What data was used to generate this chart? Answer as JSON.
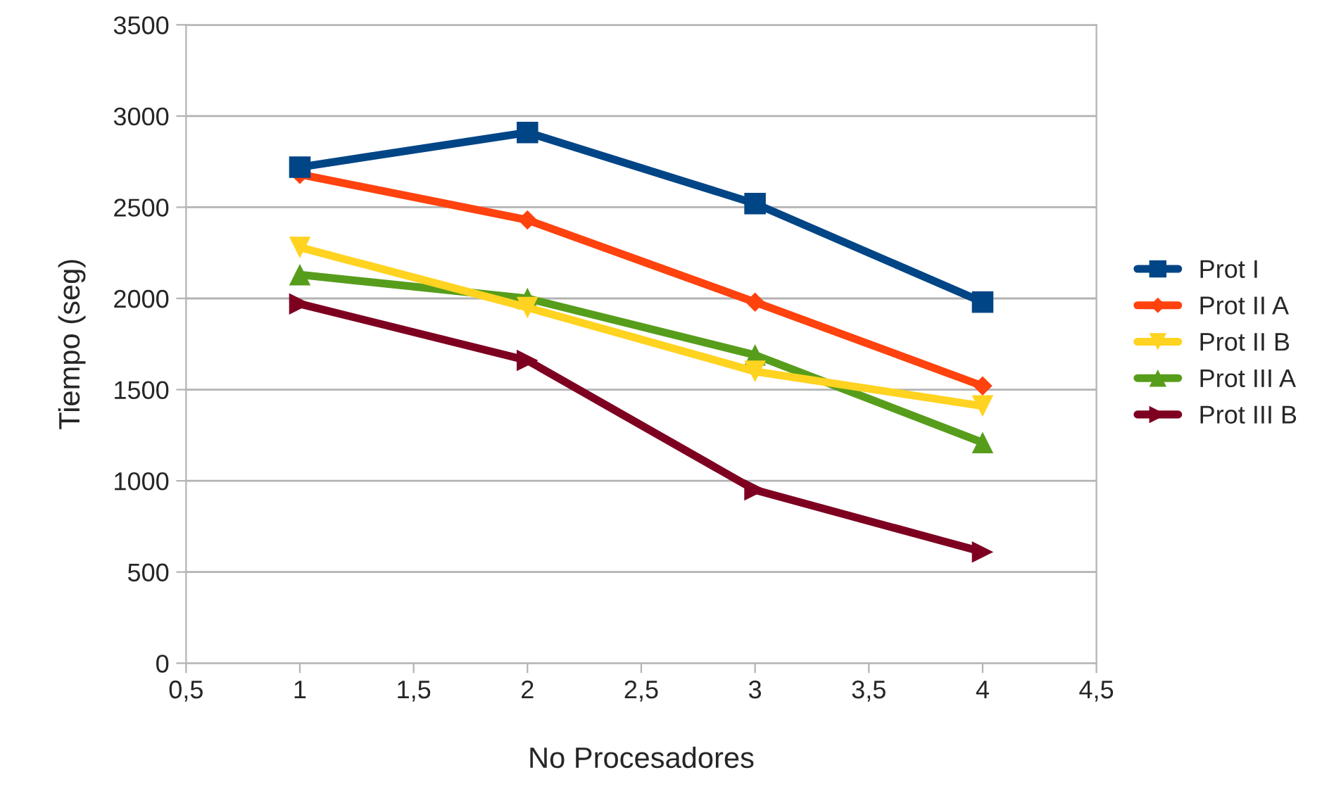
{
  "chart_data": {
    "type": "line",
    "xlabel": "No Procesadores",
    "ylabel": "Tiempo (seg)",
    "x": [
      1,
      2,
      3,
      4
    ],
    "series": [
      {
        "name": "Prot I",
        "color": "#004586",
        "marker": "square",
        "values": [
          2720,
          2910,
          2520,
          1980
        ]
      },
      {
        "name": "Prot II A",
        "color": "#ff420e",
        "marker": "diamond",
        "values": [
          2680,
          2430,
          1980,
          1520
        ]
      },
      {
        "name": "Prot II B",
        "color": "#ffd320",
        "marker": "triangle-down",
        "values": [
          2280,
          1950,
          1600,
          1410
        ]
      },
      {
        "name": "Prot III A",
        "color": "#579d1c",
        "marker": "triangle",
        "values": [
          2130,
          2000,
          1690,
          1210
        ]
      },
      {
        "name": "Prot III B",
        "color": "#7e0021",
        "marker": "triangle-right",
        "values": [
          1970,
          1660,
          950,
          610
        ]
      }
    ],
    "xlim": [
      0.5,
      4.5
    ],
    "xticks": [
      {
        "value": 0.5,
        "label": "0,5"
      },
      1,
      {
        "value": 1.5,
        "label": "1,5"
      },
      2,
      {
        "value": 2.5,
        "label": "2,5"
      },
      3,
      {
        "value": 3.5,
        "label": "3,5"
      },
      4,
      {
        "value": 4.5,
        "label": "4,5"
      }
    ],
    "ylim": [
      0,
      3500
    ],
    "yticks": [
      0,
      500,
      1000,
      1500,
      2000,
      2500,
      3000,
      3500
    ],
    "grid": "y",
    "legend": "right",
    "line_style": "solid"
  }
}
